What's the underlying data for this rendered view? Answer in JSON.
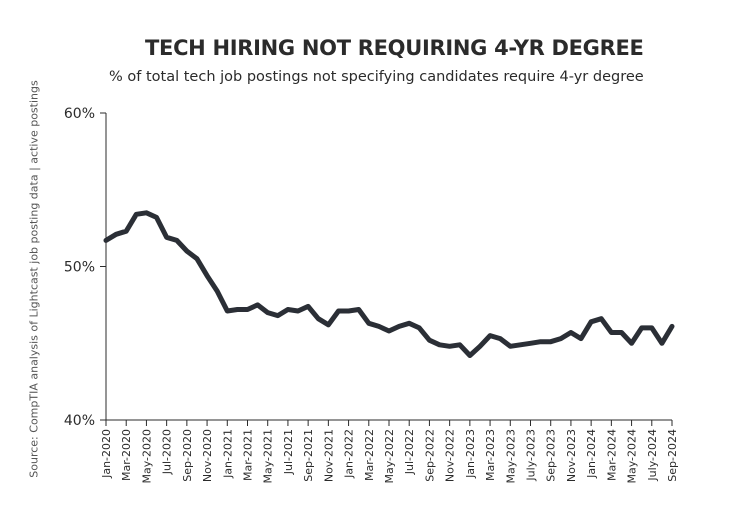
{
  "title": "TECH HIRING NOT REQUIRING 4-YR DEGREE",
  "subtitle": "% of total tech job postings not specifying candidates require 4-yr degree",
  "source": "Source: CompTIA analysis of Lightcast job posting data | active postings",
  "colors": {
    "line": "#2b2f36",
    "axis": "#2b2b2b",
    "text": "#2b2b2b"
  },
  "chart_data": {
    "type": "line",
    "title": "TECH HIRING NOT REQUIRING 4-YR DEGREE",
    "subtitle": "% of total tech job postings not specifying candidates require 4-yr degree",
    "xlabel": "",
    "ylabel": "",
    "ylim": [
      40,
      60
    ],
    "y_ticks": [
      "40%",
      "50%",
      "60%"
    ],
    "y_tick_values": [
      40,
      50,
      60
    ],
    "x_tick_labels": [
      "Jan-2020",
      "Mar-2020",
      "May-2020",
      "Jul-2020",
      "Sep-2020",
      "Nov-2020",
      "Jan-2021",
      "Mar-2021",
      "May-2021",
      "Jul-2021",
      "Sep-2021",
      "Nov-2021",
      "Jan-2022",
      "Mar-2022",
      "May-2022",
      "Jul-2022",
      "Sep-2022",
      "Nov-2022",
      "Jan-2023",
      "Mar-2023",
      "May-2023",
      "July-2023",
      "Sep-2023",
      "Nov-2023",
      "Jan-2024",
      "Mar-2024",
      "May-2024",
      "July-2024",
      "Sep-2024"
    ],
    "grid": false,
    "legend": "none",
    "x": [
      "Jan-2020",
      "Feb-2020",
      "Mar-2020",
      "Apr-2020",
      "May-2020",
      "Jun-2020",
      "Jul-2020",
      "Aug-2020",
      "Sep-2020",
      "Oct-2020",
      "Nov-2020",
      "Dec-2020",
      "Jan-2021",
      "Feb-2021",
      "Mar-2021",
      "Apr-2021",
      "May-2021",
      "Jun-2021",
      "Jul-2021",
      "Aug-2021",
      "Sep-2021",
      "Oct-2021",
      "Nov-2021",
      "Dec-2021",
      "Jan-2022",
      "Feb-2022",
      "Mar-2022",
      "Apr-2022",
      "May-2022",
      "Jun-2022",
      "Jul-2022",
      "Aug-2022",
      "Sep-2022",
      "Oct-2022",
      "Nov-2022",
      "Dec-2022",
      "Jan-2023",
      "Feb-2023",
      "Mar-2023",
      "Apr-2023",
      "May-2023",
      "Jun-2023",
      "Jul-2023",
      "Aug-2023",
      "Sep-2023",
      "Oct-2023",
      "Nov-2023",
      "Dec-2023",
      "Jan-2024",
      "Feb-2024",
      "Mar-2024",
      "Apr-2024",
      "May-2024",
      "Jun-2024",
      "Jul-2024",
      "Aug-2024",
      "Sep-2024"
    ],
    "series": [
      {
        "values": [
          51.7,
          52.1,
          52.3,
          53.4,
          53.5,
          53.2,
          51.9,
          51.7,
          51.0,
          50.5,
          49.4,
          48.4,
          47.1,
          47.2,
          47.2,
          47.5,
          47.0,
          46.8,
          47.2,
          47.1,
          47.4,
          46.6,
          46.2,
          47.1,
          47.1,
          47.2,
          46.3,
          46.1,
          45.8,
          46.1,
          46.3,
          46.0,
          45.2,
          44.9,
          44.8,
          44.9,
          44.2,
          44.8,
          45.5,
          45.3,
          44.8,
          44.9,
          45.0,
          45.1,
          45.1,
          45.3,
          45.7,
          45.3,
          46.4,
          46.6,
          45.7,
          45.7,
          45.0,
          46.0,
          46.0,
          45.0,
          46.1
        ]
      }
    ]
  }
}
